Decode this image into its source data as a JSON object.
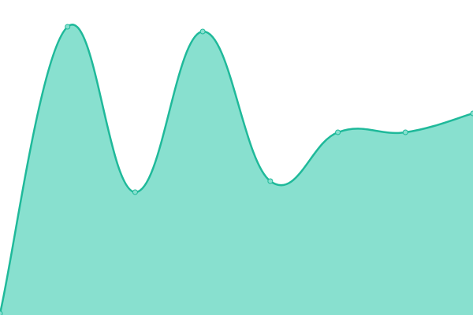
{
  "chart_data": {
    "type": "area",
    "categories": [
      null,
      null,
      null,
      null,
      null,
      null,
      null,
      null
    ],
    "values": [
      0.5,
      91.5,
      39,
      90,
      42.5,
      58,
      58,
      64
    ],
    "ylim": [
      0,
      100
    ],
    "color": "#1fb99a",
    "fill_color": "#88e0cf"
  }
}
